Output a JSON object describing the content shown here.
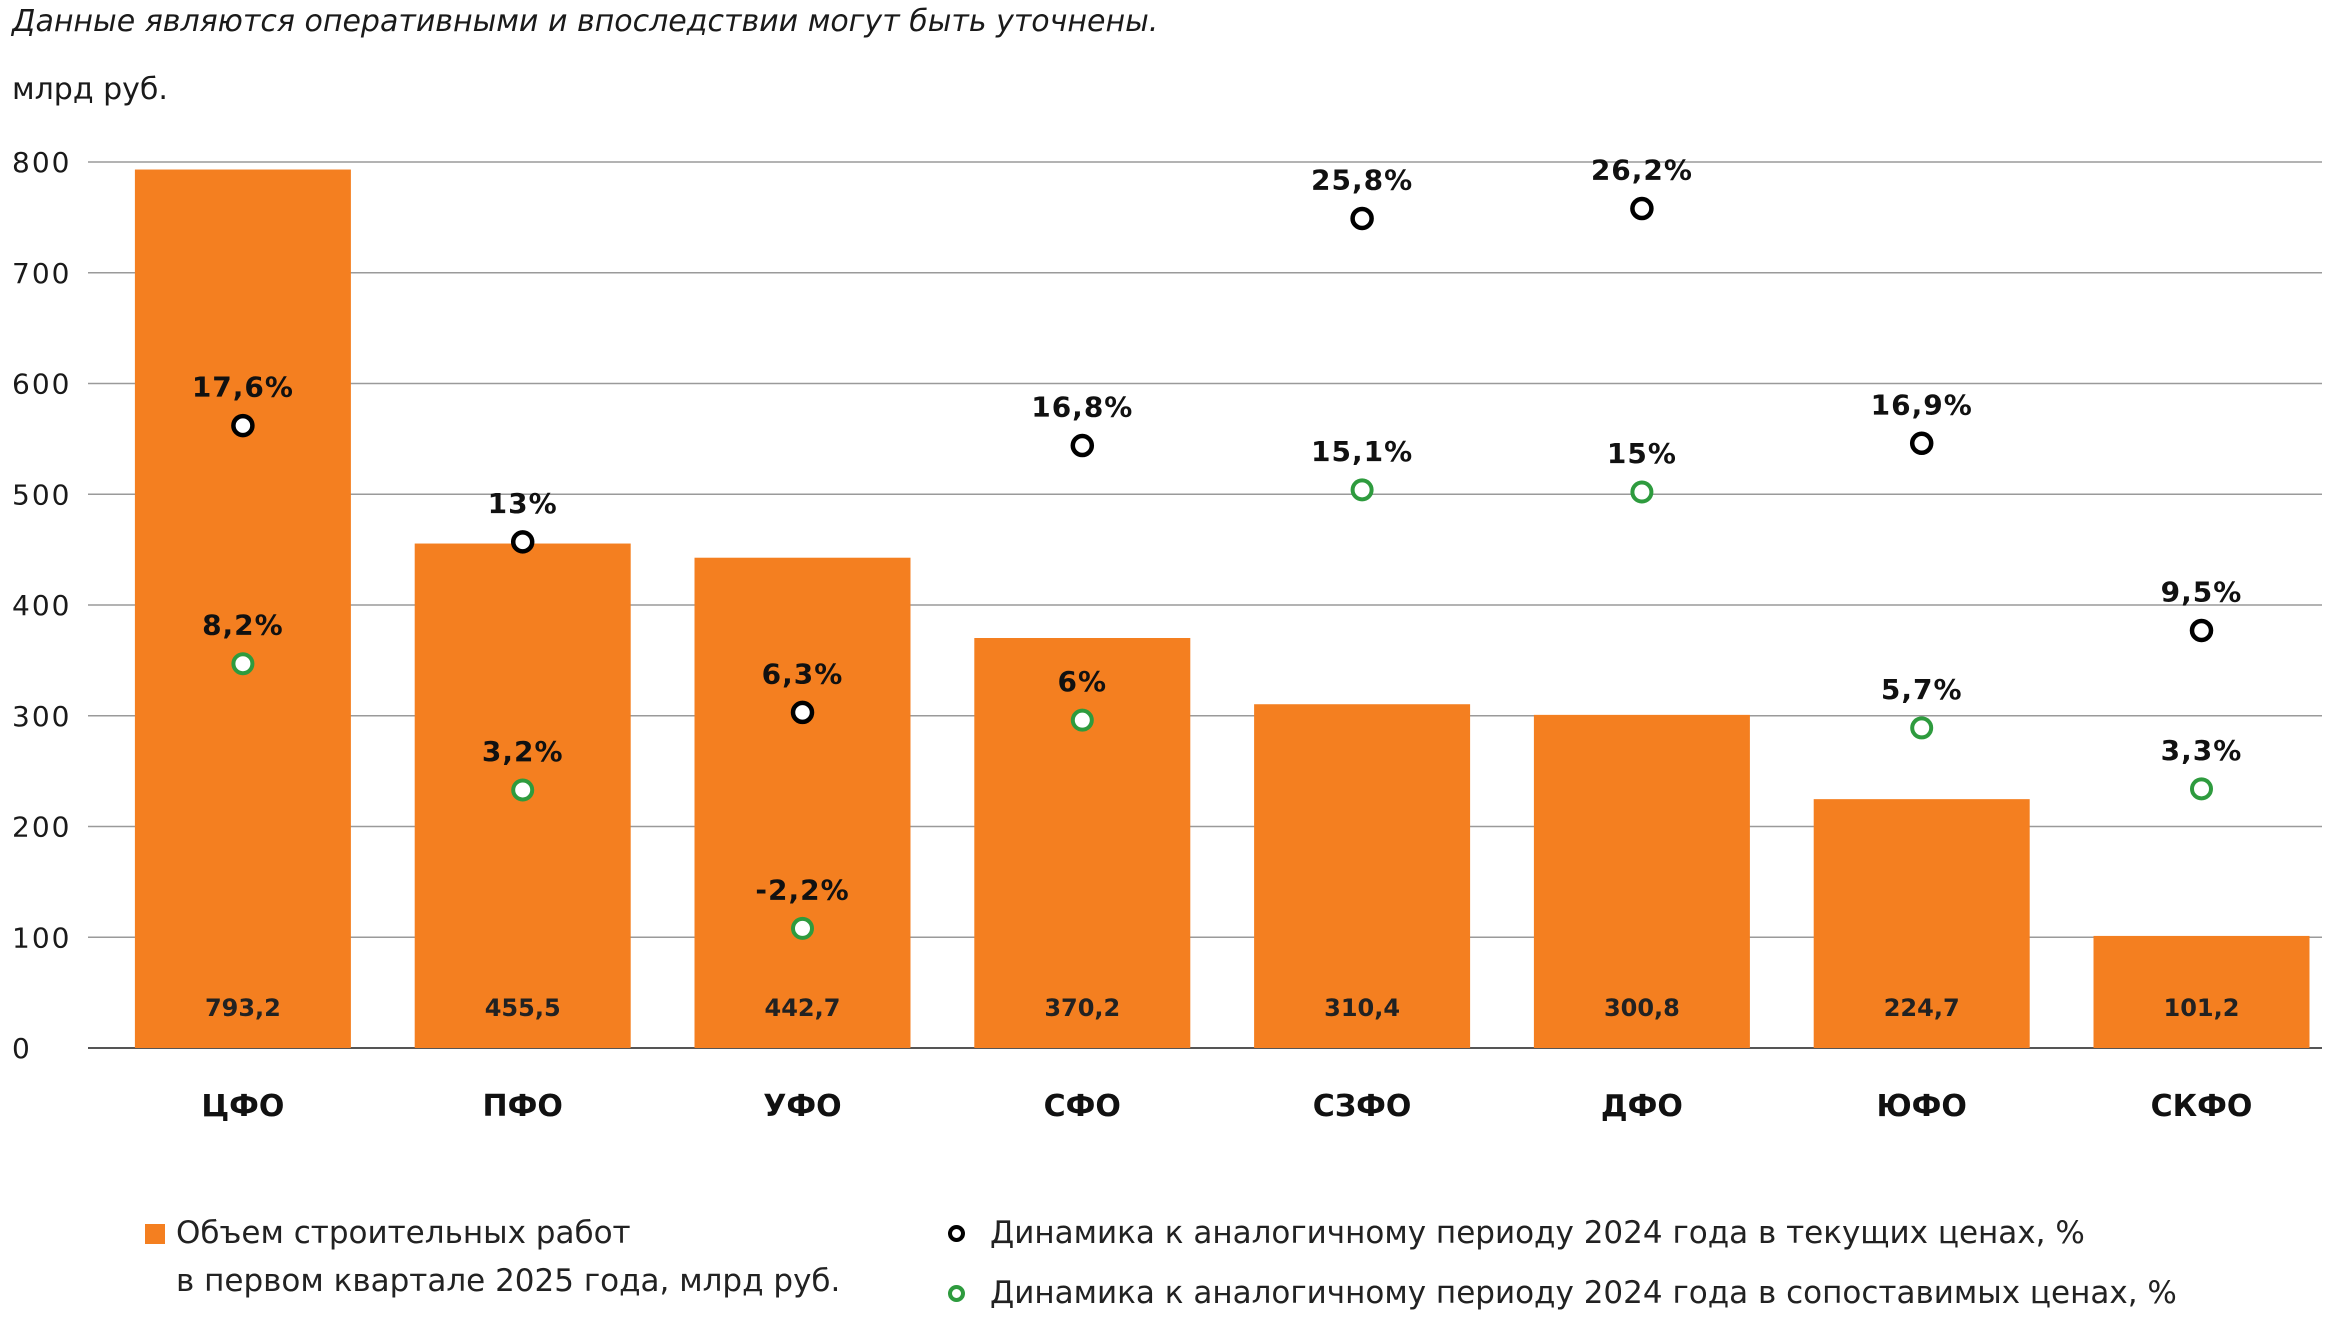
{
  "header": {
    "note": "Данные являются оперативными и впоследствии могут быть уточнены.",
    "unit": "млрд руб."
  },
  "legend": {
    "bars_line1": "Объем строительных работ",
    "bars_line2": "в первом квартале 2025 года, млрд руб.",
    "current_prices": "Динамика к аналогичному периоду 2024 года в текущих ценах, %",
    "comparable_prices": "Динамика к аналогичному периоду 2024 года в сопоставимых ценах, %"
  },
  "chart_data": {
    "type": "bar",
    "title": "",
    "xlabel": "",
    "ylabel": "млрд руб.",
    "ylim": [
      0,
      800
    ],
    "yticks": [
      0,
      100,
      200,
      300,
      400,
      500,
      600,
      700,
      800
    ],
    "grid": true,
    "categories": [
      "ЦФО",
      "ПФО",
      "УФО",
      "СФО",
      "СЗФО",
      "ДФО",
      "ЮФО",
      "СКФО"
    ],
    "series": [
      {
        "name": "Объем строительных работ в первом квартале 2025 года, млрд руб.",
        "kind": "bar",
        "color": "#f47f20",
        "values": [
          793.2,
          455.5,
          442.7,
          370.2,
          310.4,
          300.8,
          224.7,
          101.2
        ],
        "labels": [
          "793,2",
          "455,5",
          "442,7",
          "370,2",
          "310,4",
          "300,8",
          "224,7",
          "101,2"
        ]
      },
      {
        "name": "Динамика к аналогичному периоду 2024 года в текущих ценах, %",
        "kind": "marker",
        "color": "#000000",
        "positions": [
          562,
          457,
          303,
          544,
          749,
          758,
          546,
          377
        ],
        "labels": [
          "17,6%",
          "13%",
          "6,3%",
          "16,8%",
          "25,8%",
          "26,2%",
          "16,9%",
          "9,5%"
        ]
      },
      {
        "name": "Динамика к аналогичному периоду 2024 года в сопоставимых ценах, %",
        "kind": "marker",
        "color": "#2e9b3e",
        "positions": [
          347,
          233,
          108,
          296,
          504,
          502,
          289,
          234
        ],
        "labels": [
          "8,2%",
          "3,2%",
          "-2,2%",
          "6%",
          "15,1%",
          "15%",
          "5,7%",
          "3,3%"
        ]
      }
    ]
  }
}
